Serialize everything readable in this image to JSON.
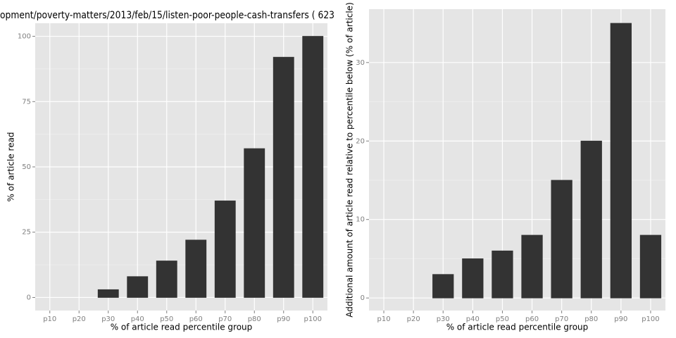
{
  "chart_data": [
    {
      "type": "bar",
      "title": "opment/poverty-matters/2013/feb/15/listen-poor-people-cash-transfers ( 623",
      "x_label": "% of article read percentile group",
      "y_label": "% of article read",
      "categories": [
        "p10",
        "p20",
        "p30",
        "p40",
        "p50",
        "p60",
        "p70",
        "p80",
        "p90",
        "p100"
      ],
      "values": [
        0,
        0,
        3,
        8,
        14,
        22,
        37,
        57,
        92,
        100
      ],
      "color": "#333333",
      "ylim": [
        -5,
        105
      ],
      "yticks": [
        0,
        25,
        50,
        75,
        100
      ],
      "grid": true
    },
    {
      "type": "bar",
      "x_label": "% of article read percentile group",
      "y_label": "Additional amount of article read relative to percentile below (% of article)",
      "categories": [
        "p10",
        "p20",
        "p30",
        "p40",
        "p50",
        "p60",
        "p70",
        "p80",
        "p90",
        "p100"
      ],
      "values": [
        0,
        0,
        3,
        5,
        6,
        8,
        15,
        20,
        35,
        8
      ],
      "color": "#333333",
      "ylim": [
        -1.6,
        36.8
      ],
      "yticks": [
        0,
        10,
        20,
        30
      ],
      "grid": true
    }
  ]
}
